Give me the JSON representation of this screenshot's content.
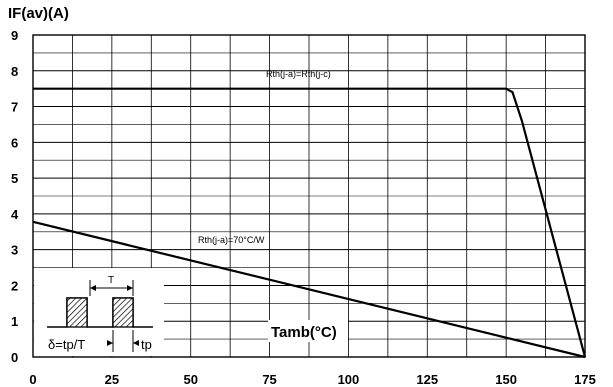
{
  "chart_data": {
    "type": "line",
    "ylabel": "IF(av)(A)",
    "xlabel": "Tamb(°C)",
    "xlim": [
      0,
      175
    ],
    "ylim": [
      0,
      9
    ],
    "x_ticks": [
      0,
      25,
      50,
      75,
      100,
      125,
      150,
      175
    ],
    "y_ticks": [
      0,
      1,
      2,
      3,
      4,
      5,
      6,
      7,
      8,
      9
    ],
    "x_minor_step": 12.5,
    "y_minor_step": 0.5,
    "grid": true,
    "series": [
      {
        "name": "Rth(j-a)=Rth(j-c)",
        "x": [
          0,
          150,
          152,
          155,
          175
        ],
        "y": [
          7.5,
          7.5,
          7.4,
          6.6,
          0
        ]
      },
      {
        "name": "Rth(j-a)=70°C/W",
        "x": [
          0,
          175
        ],
        "y": [
          3.78,
          0
        ]
      }
    ],
    "inset": {
      "period_label": "T",
      "duty_label": "δ=tp/T",
      "pulse_label": "tp"
    }
  }
}
